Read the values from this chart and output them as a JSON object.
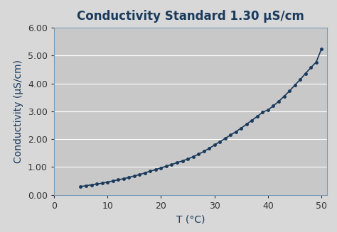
{
  "title": "Conductivity Standard 1.30 μS/cm",
  "xlabel": "T (°C)",
  "ylabel": "Conductivity (μS/cm)",
  "xlim": [
    0,
    51
  ],
  "ylim": [
    0,
    6.0
  ],
  "xticks": [
    0,
    10,
    20,
    30,
    40,
    50
  ],
  "yticks": [
    0.0,
    1.0,
    2.0,
    3.0,
    4.0,
    5.0,
    6.0
  ],
  "ytick_labels": [
    "0.00",
    "1.00",
    "2.00",
    "3.00",
    "4.00",
    "5.00",
    "6.00"
  ],
  "temperatures": [
    5,
    6,
    7,
    8,
    9,
    10,
    11,
    12,
    13,
    14,
    15,
    16,
    17,
    18,
    19,
    20,
    21,
    22,
    23,
    24,
    25,
    26,
    27,
    28,
    29,
    30,
    31,
    32,
    33,
    34,
    35,
    36,
    37,
    38,
    39,
    40,
    41,
    42,
    43,
    44,
    45,
    46,
    47,
    48,
    49,
    50
  ],
  "conductivity": [
    0.3,
    0.33,
    0.36,
    0.39,
    0.42,
    0.46,
    0.5,
    0.54,
    0.58,
    0.63,
    0.68,
    0.73,
    0.79,
    0.85,
    0.91,
    0.97,
    1.03,
    1.09,
    1.16,
    1.22,
    1.29,
    1.37,
    1.46,
    1.56,
    1.67,
    1.79,
    1.91,
    2.03,
    2.15,
    2.27,
    2.4,
    2.54,
    2.68,
    2.82,
    2.97,
    3.05,
    3.2,
    3.36,
    3.54,
    3.73,
    3.94,
    4.14,
    4.36,
    4.57,
    4.77,
    5.25
  ],
  "line_color": "#1a3a5c",
  "marker": ".",
  "marker_size": 5,
  "line_width": 1.2,
  "bg_color": "#c8c8c8",
  "outer_bg": "#d8d8d8",
  "title_color": "#1a3a5c",
  "title_fontsize": 12,
  "axis_label_fontsize": 10,
  "tick_fontsize": 9,
  "border_color": "#7a9ab8"
}
